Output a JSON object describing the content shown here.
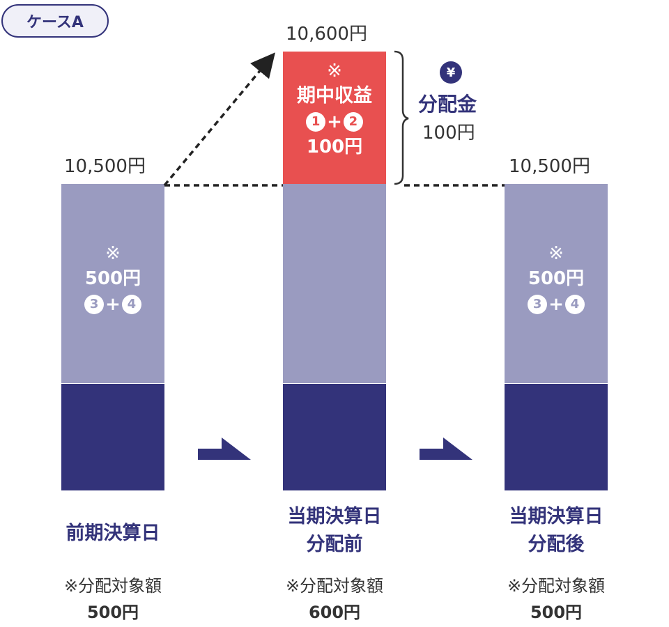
{
  "badge": "ケースA",
  "bars": [
    {
      "top_value": "10,500円",
      "mark": "※",
      "amount": "500円",
      "circle_a": "3",
      "circle_b": "4",
      "plus": "+",
      "label_lines": [
        "前期決算日"
      ],
      "note": "※分配対象額",
      "note_amount": "500円"
    },
    {
      "top_value": "10,600円",
      "mark": "※",
      "title": "期中収益",
      "circle_a": "1",
      "circle_b": "2",
      "plus": "+",
      "amount": "100円",
      "label_lines": [
        "当期決算日",
        "分配前"
      ],
      "note": "※分配対象額",
      "note_amount": "600円"
    },
    {
      "top_value": "10,500円",
      "mark": "※",
      "amount": "500円",
      "circle_a": "3",
      "circle_b": "4",
      "plus": "+",
      "label_lines": [
        "当期決算日",
        "分配後"
      ],
      "note": "※分配対象額",
      "note_amount": "500円"
    }
  ],
  "distribution": {
    "icon": "yen-icon",
    "yen_symbol": "¥",
    "label": "分配金",
    "amount": "100円"
  },
  "colors": {
    "navy": "#33337a",
    "lavender": "#9a9bc0",
    "red": "#e85050"
  }
}
